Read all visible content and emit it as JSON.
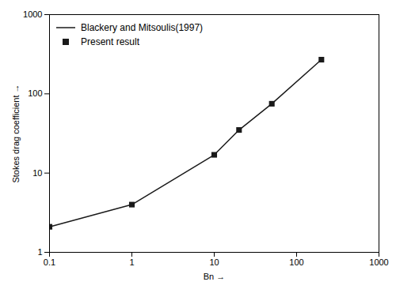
{
  "chart_data": {
    "type": "line",
    "xlabel": "Bn",
    "ylabel": "Stokes drag coefficient",
    "log": true,
    "xlim": [
      0.1,
      1000
    ],
    "ylim": [
      1,
      1000
    ],
    "xticks": [
      0.1,
      1,
      10,
      100,
      1000
    ],
    "yticks": [
      1,
      10,
      100,
      1000
    ],
    "legend": "upper left",
    "x": [
      0.1,
      1,
      10,
      20,
      50,
      200
    ],
    "series": [
      {
        "name": "Blackery and Mitsoulis(1997)",
        "type": "line",
        "color": "#1a1a1a",
        "values": [
          2.1,
          4.0,
          17.0,
          35.0,
          75.0,
          270.0
        ]
      },
      {
        "name": "Present result",
        "type": "scatter",
        "marker": "square",
        "color": "#1a1a1a",
        "values": [
          2.1,
          4.0,
          17.0,
          35.0,
          75.0,
          270.0
        ]
      }
    ]
  }
}
